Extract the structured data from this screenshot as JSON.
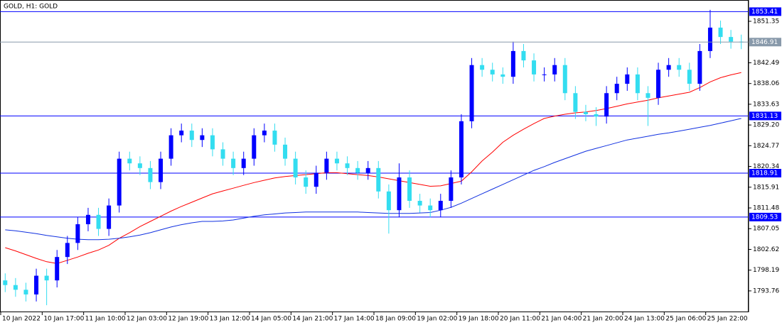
{
  "chart_data": {
    "type": "candlestick",
    "title": "GOLD, H1:  GOLD",
    "categories": [
      "10 Jan 2022",
      null,
      null,
      null,
      "10 Jan 17:00",
      null,
      null,
      null,
      "11 Jan 10:00",
      null,
      null,
      null,
      "12 Jan 03:00",
      null,
      null,
      null,
      "12 Jan 19:00",
      null,
      null,
      null,
      "13 Jan 12:00",
      null,
      null,
      null,
      "14 Jan 05:00",
      null,
      null,
      null,
      "14 Jan 21:00",
      null,
      null,
      null,
      "17 Jan 14:00",
      null,
      null,
      null,
      "18 Jan 09:00",
      null,
      null,
      null,
      "19 Jan 02:00",
      null,
      null,
      null,
      "19 Jan 18:00",
      null,
      null,
      null,
      "20 Jan 11:00",
      null,
      null,
      null,
      "21 Jan 04:00",
      null,
      null,
      null,
      "21 Jan 20:00",
      null,
      null,
      null,
      "24 Jan 13:00",
      null,
      null,
      null,
      "25 Jan 06:00",
      null,
      null,
      null,
      "25 Jan 22:00",
      null,
      null,
      null
    ],
    "open": [
      1796,
      1795,
      1794,
      1793,
      1797,
      1796,
      1801,
      1804,
      1808,
      1810,
      1807,
      1812,
      1822,
      1821,
      1820,
      1817,
      1822,
      1827,
      1828,
      1826,
      1827,
      1824,
      1822,
      1820,
      1822,
      1827,
      1828,
      1825,
      1822,
      1818,
      1816,
      1819,
      1822,
      1821,
      1820,
      1819,
      1820,
      1815,
      1811,
      1818,
      1813,
      1812,
      1811,
      1813,
      1818,
      1830,
      1842,
      1841,
      1840,
      1839.5,
      1845,
      1843,
      1840,
      1840,
      1842,
      1836,
      1832,
      1831.5,
      1831,
      1836,
      1838,
      1840,
      1836,
      1835,
      1841,
      1842,
      1841,
      1838,
      1845,
      1850,
      1848,
      1847
    ],
    "high": [
      1797.5,
      1796.5,
      1795.5,
      1798.5,
      1798.5,
      1802.5,
      1805.5,
      1809.5,
      1811.5,
      1811.5,
      1813.5,
      1823.5,
      1823.5,
      1822.5,
      1821.5,
      1823.5,
      1828.5,
      1829.5,
      1829.5,
      1828.5,
      1828.5,
      1825.5,
      1823.5,
      1823.5,
      1828.5,
      1829.5,
      1829.5,
      1826.5,
      1823.5,
      1819.5,
      1820.5,
      1823.5,
      1823.5,
      1822.5,
      1821.5,
      1821.5,
      1821.5,
      1816.5,
      1821,
      1819.5,
      1814.5,
      1813.5,
      1814.5,
      1819.5,
      1831.5,
      1843.5,
      1843.5,
      1842.5,
      1841.5,
      1847,
      1846.5,
      1844.5,
      1841.5,
      1843.5,
      1843.5,
      1837.5,
      1833.5,
      1833,
      1837.5,
      1839.5,
      1841.5,
      1841.5,
      1837.5,
      1842.5,
      1843.5,
      1843.5,
      1842.5,
      1846.5,
      1853.8,
      1851.5,
      1849.5,
      1848.5
    ],
    "low": [
      1793.5,
      1792.5,
      1791.5,
      1791.5,
      1790.7,
      1794.5,
      1799.5,
      1802.5,
      1806.5,
      1805.5,
      1805.5,
      1810.5,
      1819.5,
      1818.5,
      1815.5,
      1815.5,
      1820.5,
      1825.5,
      1824.5,
      1824.5,
      1822.5,
      1820.5,
      1818.5,
      1818.5,
      1820.5,
      1825.5,
      1823.5,
      1820.5,
      1816.5,
      1814.5,
      1814.5,
      1817.5,
      1819.5,
      1818.5,
      1817.5,
      1817.5,
      1813.5,
      1806,
      1809.5,
      1811.5,
      1810.5,
      1809.5,
      1809.5,
      1811.5,
      1816.5,
      1828.5,
      1839.5,
      1838.5,
      1838,
      1838,
      1841.5,
      1838.5,
      1838.5,
      1838.5,
      1834.5,
      1830.5,
      1830,
      1829,
      1829.5,
      1834.5,
      1836.5,
      1834.5,
      1829,
      1833.5,
      1839.5,
      1839.5,
      1836.5,
      1836.5,
      1843.5,
      1846.5,
      1845.5,
      1845.4
    ],
    "close": [
      1795,
      1794,
      1793,
      1797,
      1796,
      1801,
      1804,
      1808,
      1810,
      1807,
      1812,
      1822,
      1821,
      1820,
      1817,
      1822,
      1827,
      1828,
      1826,
      1827,
      1824,
      1822,
      1820,
      1822,
      1827,
      1828,
      1825,
      1822,
      1818,
      1816,
      1819,
      1822,
      1821,
      1820,
      1819,
      1820,
      1815,
      1811,
      1818,
      1813,
      1812,
      1811,
      1813,
      1818,
      1830,
      1842,
      1841,
      1840,
      1839.5,
      1845,
      1843,
      1840,
      1840,
      1842,
      1836,
      1832,
      1831.5,
      1831,
      1836,
      1838,
      1840,
      1836,
      1835,
      1841,
      1842,
      1841,
      1838,
      1845,
      1850,
      1848,
      1847,
      1846.91
    ],
    "bull_color": "#0000ff",
    "bear_color": "#33ddf0",
    "series": [
      {
        "color": "#ff0000",
        "values": [
          1803,
          1802.3,
          1801.5,
          1800.7,
          1800,
          1799.6,
          1800.3,
          1801,
          1801.8,
          1802.5,
          1803.5,
          1805,
          1806.2,
          1807.5,
          1808.6,
          1809.7,
          1810.8,
          1811.8,
          1812.7,
          1813.6,
          1814.5,
          1815.1,
          1815.7,
          1816.3,
          1816.9,
          1817.4,
          1817.9,
          1818.2,
          1818.4,
          1818.6,
          1818.8,
          1819,
          1819,
          1818.8,
          1818.6,
          1818.4,
          1818.1,
          1817.7,
          1817.3,
          1816.9,
          1816.5,
          1816.1,
          1816.2,
          1816.7,
          1817.2,
          1819.2,
          1821.5,
          1823.4,
          1825.5,
          1827,
          1828.3,
          1829.5,
          1830.6,
          1831.1,
          1831.5,
          1831.8,
          1832,
          1832.3,
          1832.7,
          1833.2,
          1833.7,
          1834.1,
          1834.5,
          1835,
          1835.4,
          1835.8,
          1836.2,
          1837.2,
          1838.4,
          1839.3,
          1839.9,
          1840.4
        ]
      },
      {
        "color": "#1030e0",
        "values": [
          1806.8,
          1806.6,
          1806.3,
          1806,
          1805.6,
          1805.3,
          1805,
          1804.8,
          1804.7,
          1804.7,
          1804.8,
          1805,
          1805.3,
          1805.7,
          1806.2,
          1806.8,
          1807.4,
          1807.9,
          1808.3,
          1808.6,
          1808.6,
          1808.7,
          1808.9,
          1809.3,
          1809.7,
          1810,
          1810.2,
          1810.4,
          1810.5,
          1810.6,
          1810.6,
          1810.6,
          1810.6,
          1810.6,
          1810.6,
          1810.5,
          1810.4,
          1810.3,
          1810.3,
          1810.3,
          1810.4,
          1810.5,
          1811,
          1811.6,
          1812.5,
          1813.5,
          1814.5,
          1815.5,
          1816.5,
          1817.5,
          1818.5,
          1819.5,
          1820.3,
          1821.2,
          1822,
          1822.8,
          1823.6,
          1824.2,
          1824.8,
          1825.4,
          1826,
          1826.4,
          1826.8,
          1827.2,
          1827.5,
          1827.9,
          1828.3,
          1828.7,
          1829.1,
          1829.6,
          1830.1,
          1830.6
        ]
      }
    ],
    "levels": [
      {
        "value": 1853.41,
        "color": "#0000ff"
      },
      {
        "value": 1831.13,
        "color": "#0000ff"
      },
      {
        "value": 1818.91,
        "color": "#0000ff"
      },
      {
        "value": 1809.53,
        "color": "#0000ff"
      }
    ],
    "price_line_color": "#8899aa",
    "ylim": [
      1789.2,
      1855.9
    ],
    "yticks": [
      1851.35,
      1842.49,
      1838.06,
      1833.63,
      {
        "value": 1829.2,
        "label": "1829.20"
      },
      1824.77,
      1820.34,
      1815.91,
      1811.48,
      {
        "value": 1807.05,
        "label": "1807.05"
      },
      1802.62,
      1798.19,
      1793.76
    ]
  }
}
